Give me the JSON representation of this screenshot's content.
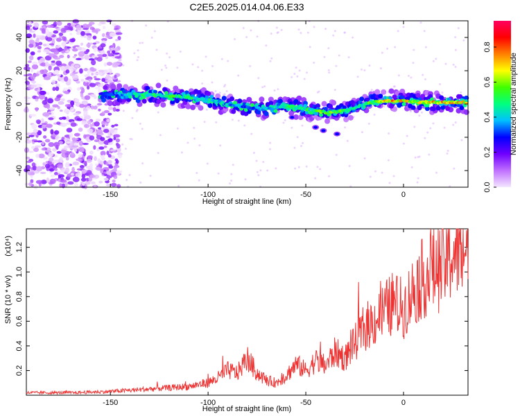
{
  "title": "C2E5.2025.014.04.06.E33",
  "chart_data": [
    {
      "type": "heatmap",
      "xlabel": "Height of straight line (km)",
      "ylabel": "Frequency (Hz)",
      "xlim": [
        -193,
        33
      ],
      "ylim": [
        -50,
        50
      ],
      "x_ticks": [
        -150,
        -100,
        -50,
        0
      ],
      "y_ticks": [
        -40,
        -20,
        0,
        20,
        40
      ],
      "colorbar": {
        "label": "Normalized spectral amplitude",
        "range": [
          0.0,
          0.95
        ],
        "ticks": [
          0.0,
          0.2,
          0.4,
          0.6,
          0.8
        ],
        "colors": [
          "#f4e6ff",
          "#c070ff",
          "#6f00ff",
          "#0000ff",
          "#00c0ff",
          "#00ff80",
          "#40ff00",
          "#ffff00",
          "#ff8000",
          "#ff0000",
          "#ff0060"
        ]
      },
      "ridge": {
        "x": [
          -155,
          -140,
          -120,
          -100,
          -90,
          -80,
          -70,
          -60,
          -50,
          -40,
          -30,
          -20,
          -10,
          0,
          10,
          20,
          33
        ],
        "y": [
          6,
          6,
          5,
          3,
          0,
          -2,
          -3,
          -1,
          -3,
          -5,
          -4,
          0,
          2,
          2,
          1,
          1,
          1
        ],
        "peak": [
          0.3,
          0.5,
          0.6,
          0.55,
          0.45,
          0.4,
          0.45,
          0.6,
          0.55,
          0.65,
          0.6,
          0.55,
          0.85,
          0.8,
          0.75,
          0.85,
          0.8
        ]
      },
      "noise_region_x": [
        -193,
        -145
      ]
    },
    {
      "type": "line",
      "xlabel": "Height of straight line (km)",
      "ylabel": "SNR (10 * v/v)",
      "y_multiplier": "(x10⁴)",
      "xlim": [
        -193,
        33
      ],
      "ylim": [
        0,
        1.35
      ],
      "x_ticks": [
        -150,
        -100,
        -50,
        0
      ],
      "y_ticks": [
        0.2,
        0.4,
        0.6,
        0.8,
        1.0,
        1.2
      ],
      "series": [
        {
          "color": "#ee3333",
          "x": [
            -193,
            -180,
            -170,
            -160,
            -150,
            -140,
            -130,
            -120,
            -110,
            -100,
            -95,
            -90,
            -85,
            -80,
            -75,
            -70,
            -65,
            -60,
            -55,
            -50,
            -45,
            -40,
            -35,
            -30,
            -25,
            -20,
            -15,
            -10,
            -5,
            0,
            5,
            10,
            15,
            20,
            25,
            30,
            33
          ],
          "y": [
            0.02,
            0.02,
            0.02,
            0.025,
            0.03,
            0.04,
            0.05,
            0.06,
            0.07,
            0.1,
            0.14,
            0.2,
            0.18,
            0.3,
            0.18,
            0.12,
            0.1,
            0.16,
            0.25,
            0.2,
            0.28,
            0.24,
            0.35,
            0.3,
            0.42,
            0.55,
            0.6,
            0.68,
            0.75,
            0.7,
            0.85,
            0.95,
            1.0,
            1.05,
            1.15,
            1.2,
            1.22
          ]
        }
      ]
    }
  ]
}
